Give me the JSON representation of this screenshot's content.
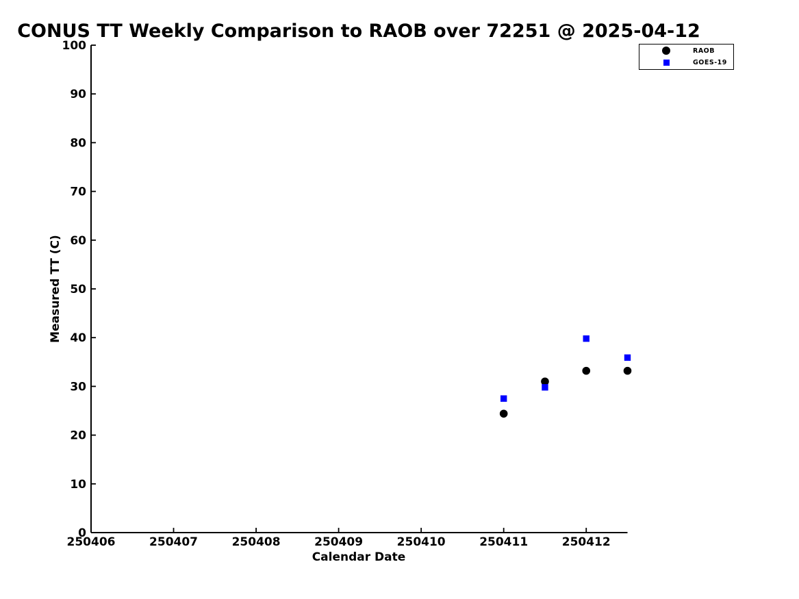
{
  "title": "CONUS TT Weekly Comparison to RAOB over 72251 @ 2025-04-12",
  "chart_data": {
    "type": "scatter",
    "title": "CONUS TT Weekly Comparison to RAOB over 72251 @ 2025-04-12",
    "xlabel": "Calendar Date",
    "ylabel": "Measured TT (C)",
    "xlim": [
      250406,
      250412.5
    ],
    "ylim": [
      0,
      100
    ],
    "grid": false,
    "legend_position": "top-right",
    "x_tick_values": [
      250406,
      250407,
      250408,
      250409,
      250410,
      250411,
      250412
    ],
    "x_tick_labels": [
      "250406",
      "250407",
      "250408",
      "250409",
      "250410",
      "250411",
      "250412"
    ],
    "y_tick_values": [
      0,
      10,
      20,
      30,
      40,
      50,
      60,
      70,
      80,
      90,
      100
    ],
    "y_tick_labels": [
      "0",
      "10",
      "20",
      "30",
      "40",
      "50",
      "60",
      "70",
      "80",
      "90",
      "100"
    ],
    "series": [
      {
        "name": "RAOB",
        "marker": "circle",
        "color": "#000000",
        "points": [
          [
            250411.0,
            24.4
          ],
          [
            250411.5,
            31.0
          ],
          [
            250412.0,
            33.2
          ],
          [
            250412.5,
            33.2
          ]
        ]
      },
      {
        "name": "GOES-19",
        "marker": "square",
        "color": "#0000ff",
        "points": [
          [
            250411.0,
            27.5
          ],
          [
            250411.5,
            29.8
          ],
          [
            250412.0,
            39.8
          ],
          [
            250412.5,
            35.9
          ]
        ]
      }
    ]
  }
}
